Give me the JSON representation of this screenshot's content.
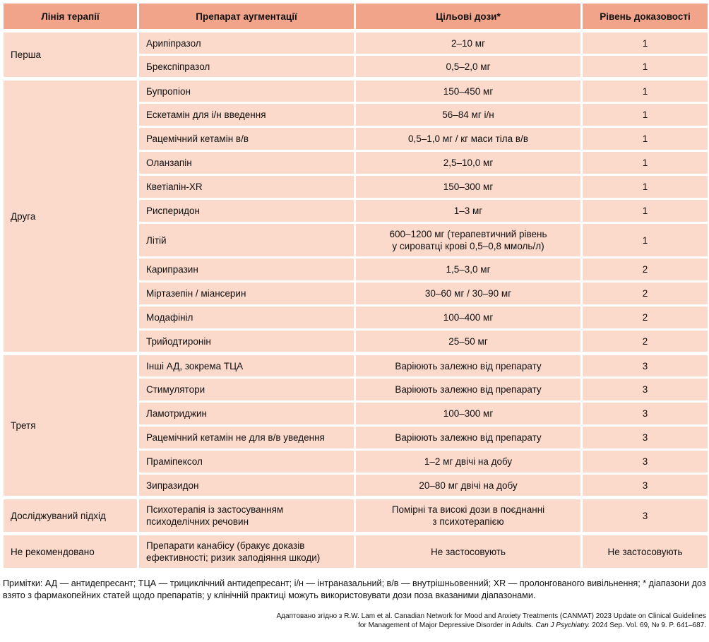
{
  "colors": {
    "header_bg": "#f2a48b",
    "cell_bg": "#fbd9cb",
    "border": "#ffffff",
    "text": "#111111"
  },
  "table": {
    "headers": [
      "Лінія терапії",
      "Препарат аугментації",
      "Цільові дози*",
      "Рівень доказовості"
    ],
    "groups": [
      {
        "line": "Перша",
        "rows": [
          {
            "drug": "Арипіпразол",
            "dose": "2–10 мг",
            "evidence": "1"
          },
          {
            "drug": "Брекспіпразол",
            "dose": "0,5–2,0 мг",
            "evidence": "1"
          }
        ]
      },
      {
        "line": "Друга",
        "rows": [
          {
            "drug": "Бупропіон",
            "dose": "150–450 мг",
            "evidence": "1"
          },
          {
            "drug": "Ескетамін для і/н введення",
            "dose": "56–84 мг і/н",
            "evidence": "1"
          },
          {
            "drug": "Рацемічний кетамін в/в",
            "dose": "0,5–1,0 мг / кг маси тіла в/в",
            "evidence": "1"
          },
          {
            "drug": "Оланзапін",
            "dose": "2,5–10,0 мг",
            "evidence": "1"
          },
          {
            "drug": "Кветіапін-XR",
            "dose": "150–300 мг",
            "evidence": "1"
          },
          {
            "drug": "Рисперидон",
            "dose": "1–3 мг",
            "evidence": "1"
          },
          {
            "drug": "Літій",
            "dose": "600–1200 мг (терапевтичний рівень\nу сироватці крові 0,5–0,8 ммоль/л)",
            "evidence": "1"
          },
          {
            "drug": "Карипразин",
            "dose": "1,5–3,0 мг",
            "evidence": "2"
          },
          {
            "drug": "Міртазепін / міансерин",
            "dose": "30–60 мг / 30–90 мг",
            "evidence": "2"
          },
          {
            "drug": "Модафініл",
            "dose": "100–400 мг",
            "evidence": "2"
          },
          {
            "drug": "Трийодтиронін",
            "dose": "25–50 мг",
            "evidence": "2"
          }
        ]
      },
      {
        "line": "Третя",
        "rows": [
          {
            "drug": "Інші АД, зокрема ТЦА",
            "dose": "Варіюють залежно від препарату",
            "evidence": "3"
          },
          {
            "drug": "Стимулятори",
            "dose": "Варіюють залежно від препарату",
            "evidence": "3"
          },
          {
            "drug": "Ламотриджин",
            "dose": "100–300 мг",
            "evidence": "3"
          },
          {
            "drug": "Рацемічний кетамін не для в/в уведення",
            "dose": "Варіюють залежно від препарату",
            "evidence": "3"
          },
          {
            "drug": "Праміпексол",
            "dose": "1–2 мг двічі на добу",
            "evidence": "3"
          },
          {
            "drug": "Зипразидон",
            "dose": "20–80 мг двічі на добу",
            "evidence": "3"
          }
        ]
      },
      {
        "line": "Досліджуваний підхід",
        "rows": [
          {
            "drug": "Психотерапія із застосуванням\nпсиходелічних речовин",
            "dose": "Помірні та високі дози в поєднанні\nз психотерапією",
            "evidence": "3"
          }
        ]
      },
      {
        "line": "Не рекомендовано",
        "rows": [
          {
            "drug": "Препарати канабісу (бракує доказів\nефективності; ризик заподіяння шкоди)",
            "dose": "Не застосовують",
            "evidence": "Не застосовують"
          }
        ]
      }
    ]
  },
  "footnote": "Примітки: АД — антидепресант; ТЦА — трициклічний антидепресант; і/н — інтраназальний; в/в — внутрішньовенний; XR — пролонгованого вивільнення; * діапазони доз взято з фармакопейних статей щодо препаратів; у клінічній практиці можуть використовувати дози поза вказаними діапазонами.",
  "attribution": {
    "line1": "Адаптовано згідно з R.W. Lam et al. Canadian Network for Mood and Anxiety Treatments (CANMAT) 2023 Update on Clinical Guidelines",
    "line2_before": "for Management of Major Depressive Disorder in Adults. ",
    "line2_italic": "Can J Psychiatry.",
    "line2_after": " 2024 Sep. Vol. 69, № 9. P. 641–687."
  }
}
